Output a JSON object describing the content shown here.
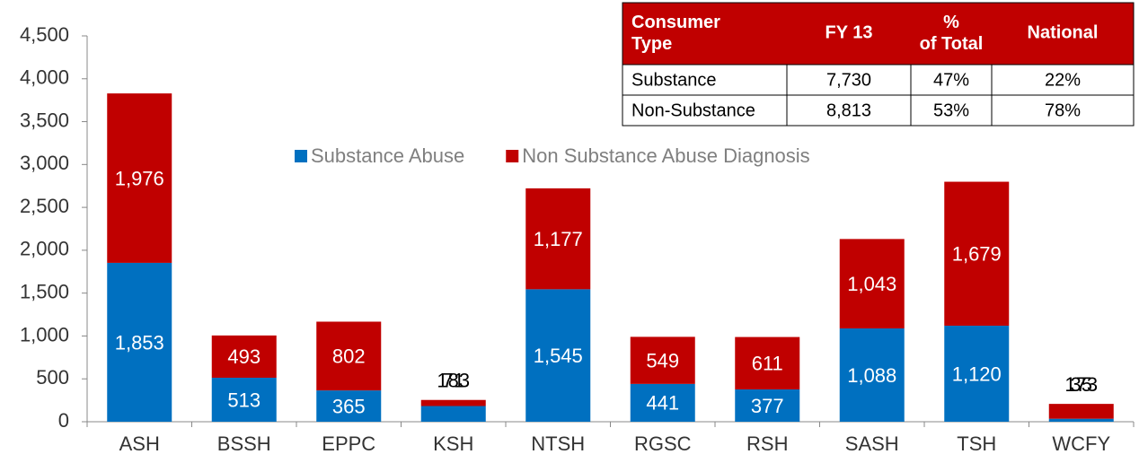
{
  "chart_data": {
    "type": "stacked_bar",
    "categories": [
      "ASH",
      "BSSH",
      "EPPC",
      "KSH",
      "NTSH",
      "RGSC",
      "RSH",
      "SASH",
      "TSH",
      "WCFY"
    ],
    "series": [
      {
        "name": "Substance Abuse",
        "color": "#0070c0",
        "values": [
          1853,
          513,
          365,
          183,
          1545,
          441,
          377,
          1088,
          1120,
          35
        ],
        "value_labels": [
          "1,853",
          "513",
          "365",
          "183",
          "1,545",
          "441",
          "377",
          "1,088",
          "1,120",
          "35"
        ]
      },
      {
        "name": "Non Substance Abuse Diagnosis",
        "color": "#c00000",
        "values": [
          1976,
          493,
          802,
          71,
          1177,
          549,
          611,
          1043,
          1679,
          173
        ],
        "value_labels": [
          "1,976",
          "493",
          "802",
          "71",
          "1,177",
          "549",
          "611",
          "1,043",
          "1,679",
          "173"
        ]
      }
    ],
    "ylim": [
      0,
      4500
    ],
    "yticks": [
      0,
      500,
      {
        "value": 1000,
        "label": "1,000"
      },
      {
        "value": 1500,
        "label": "1,500"
      },
      {
        "value": 2000,
        "label": "2,000"
      },
      {
        "value": 2500,
        "label": "2,500"
      },
      {
        "value": 3000,
        "label": "3,000"
      },
      {
        "value": 3500,
        "label": "3,500"
      },
      {
        "value": 4000,
        "label": "4,000"
      },
      {
        "value": 4500,
        "label": "4,500"
      }
    ],
    "grid": false,
    "legend": "top"
  },
  "table": {
    "header": [
      "Consumer Type",
      "FY 13",
      "% of Total",
      "National"
    ],
    "rows": [
      [
        "Substance",
        "7,730",
        "47%",
        "22%"
      ],
      [
        "Non-Substance",
        "8,813",
        "53%",
        "78%"
      ]
    ]
  }
}
